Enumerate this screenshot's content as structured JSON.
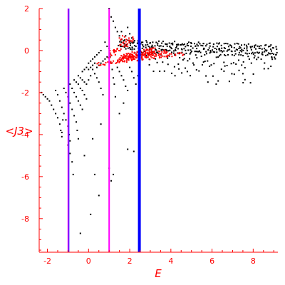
{
  "chart_data": {
    "type": "scatter",
    "title": "",
    "xlabel": "E",
    "ylabel": "<J3>",
    "xlim": [
      -2.4,
      9.2
    ],
    "ylim": [
      -9.6,
      2.0
    ],
    "x_ticks": [
      -2,
      0,
      2,
      4,
      6,
      8
    ],
    "y_ticks": [
      2,
      0,
      -2,
      -4,
      -6,
      -8
    ],
    "grid": false,
    "legend": "none",
    "colors": {
      "axis": "#ff0000",
      "black_points": "#000000",
      "red_points": "#ff0000",
      "magenta_lines": "#ff00ff",
      "blue_line": "#0000ff"
    },
    "vertical_lines": [
      {
        "x": -0.97,
        "color": "#ff00ff",
        "style": "double-magenta-blue"
      },
      {
        "x": 1.0,
        "color": "#ff00ff",
        "style": "magenta"
      },
      {
        "x": 2.47,
        "color": "#0000ff",
        "style": "thick-blue"
      }
    ],
    "series": [
      {
        "color": "#000000",
        "points": [
          [
            -2.3,
            -2.0
          ],
          [
            -2.2,
            -2.1
          ],
          [
            -2.1,
            -2.2
          ],
          [
            -2.0,
            -2.3
          ],
          [
            -1.9,
            -2.4
          ],
          [
            -1.8,
            -2.6
          ],
          [
            -1.7,
            -2.8
          ],
          [
            -1.6,
            -3.0
          ],
          [
            -1.5,
            -3.2
          ],
          [
            -1.4,
            -3.5
          ],
          [
            -1.35,
            -3.8
          ],
          [
            -1.3,
            -4.1
          ],
          [
            -1.6,
            -1.9
          ],
          [
            -1.5,
            -2.1
          ],
          [
            -1.4,
            -2.4
          ],
          [
            -1.3,
            -2.7
          ],
          [
            -1.2,
            -3.0
          ],
          [
            -1.1,
            -3.3
          ],
          [
            -1.0,
            -3.6
          ],
          [
            -0.95,
            -4.0
          ],
          [
            -0.9,
            -4.3
          ],
          [
            -1.2,
            -1.8
          ],
          [
            -1.1,
            -2.0
          ],
          [
            -1.0,
            -2.2
          ],
          [
            -0.9,
            -2.5
          ],
          [
            -0.8,
            -2.8
          ],
          [
            -0.7,
            -3.1
          ],
          [
            -0.6,
            -3.4
          ],
          [
            -0.55,
            -3.8
          ],
          [
            -0.5,
            -4.2
          ],
          [
            -0.9,
            -1.6
          ],
          [
            -0.8,
            -1.8
          ],
          [
            -0.7,
            -2.0
          ],
          [
            -0.6,
            -2.2
          ],
          [
            -0.5,
            -2.4
          ],
          [
            -0.4,
            -2.6
          ],
          [
            -0.3,
            -2.8
          ],
          [
            -0.7,
            -1.4
          ],
          [
            -0.6,
            -1.5
          ],
          [
            -0.5,
            -1.6
          ],
          [
            -0.4,
            -1.8
          ],
          [
            -0.3,
            -1.9
          ],
          [
            -0.2,
            -2.1
          ],
          [
            -0.1,
            -2.3
          ],
          [
            -0.5,
            -1.2
          ],
          [
            -0.4,
            -1.3
          ],
          [
            -0.3,
            -1.4
          ],
          [
            -0.2,
            -1.5
          ],
          [
            -0.1,
            -1.6
          ],
          [
            0.0,
            -1.4
          ],
          [
            0.1,
            -1.2
          ],
          [
            -0.3,
            -1.0
          ],
          [
            -0.2,
            -0.9
          ],
          [
            -0.1,
            -0.8
          ],
          [
            0.0,
            -0.9
          ],
          [
            0.1,
            -0.8
          ],
          [
            0.2,
            -0.7
          ],
          [
            0.3,
            -0.6
          ],
          [
            0.0,
            -0.6
          ],
          [
            0.1,
            -0.5
          ],
          [
            0.2,
            -0.4
          ],
          [
            0.3,
            -0.3
          ],
          [
            0.4,
            -0.2
          ],
          [
            0.5,
            -0.1
          ],
          [
            0.6,
            0.0
          ],
          [
            0.2,
            -0.9
          ],
          [
            0.3,
            -1.1
          ],
          [
            0.4,
            -1.3
          ],
          [
            0.5,
            -1.5
          ],
          [
            0.6,
            -1.8
          ],
          [
            0.7,
            -2.1
          ],
          [
            0.4,
            -0.8
          ],
          [
            0.5,
            -0.7
          ],
          [
            0.6,
            -0.6
          ],
          [
            0.7,
            -0.5
          ],
          [
            0.8,
            -0.4
          ],
          [
            0.9,
            -0.3
          ],
          [
            -1.0,
            -4.5
          ],
          [
            -0.9,
            -4.9
          ],
          [
            -0.8,
            -5.3
          ],
          [
            -0.75,
            -5.9
          ],
          [
            -1.3,
            -3.9
          ],
          [
            -1.25,
            -3.3
          ],
          [
            0.3,
            -5.9
          ],
          [
            0.5,
            -6.9
          ],
          [
            0.1,
            -7.8
          ],
          [
            -0.4,
            -8.7
          ],
          [
            -0.2,
            -5.0
          ],
          [
            0.2,
            -4.2
          ],
          [
            0.6,
            -3.5
          ],
          [
            1.0,
            -5.6
          ],
          [
            1.1,
            -6.2
          ],
          [
            1.2,
            -5.9
          ],
          [
            1.9,
            -4.7
          ],
          [
            2.2,
            -4.8
          ],
          [
            1.5,
            -3.0
          ],
          [
            1.7,
            -2.5
          ],
          [
            1.3,
            -2.2
          ],
          [
            1.0,
            2.0
          ],
          [
            1.1,
            1.6
          ],
          [
            1.2,
            1.4
          ],
          [
            1.3,
            1.1
          ],
          [
            1.4,
            0.9
          ],
          [
            1.5,
            0.7
          ],
          [
            1.6,
            0.4
          ],
          [
            1.7,
            0.2
          ],
          [
            0.8,
            0.4
          ],
          [
            0.9,
            0.2
          ],
          [
            1.0,
            0.1
          ],
          [
            1.05,
            -0.3
          ],
          [
            1.1,
            -0.6
          ],
          [
            1.15,
            -0.9
          ],
          [
            1.2,
            -1.3
          ],
          [
            1.25,
            -1.6
          ],
          [
            1.4,
            -0.8
          ],
          [
            1.5,
            -1.0
          ],
          [
            1.6,
            -1.2
          ],
          [
            1.7,
            -1.4
          ],
          [
            1.8,
            -1.7
          ],
          [
            1.9,
            -1.9
          ],
          [
            2.0,
            0.8
          ],
          [
            2.1,
            0.6
          ],
          [
            2.2,
            0.4
          ],
          [
            2.3,
            0.2
          ],
          [
            1.8,
            0.7
          ],
          [
            1.6,
            0.9
          ],
          [
            1.9,
            1.1
          ],
          [
            2.0,
            -0.8
          ],
          [
            2.1,
            -1.0
          ],
          [
            2.2,
            -1.3
          ],
          [
            2.3,
            -1.6
          ],
          [
            2.4,
            -1.2
          ],
          [
            8.7,
            -0.2
          ],
          [
            8.9,
            -0.3
          ],
          [
            9.1,
            -0.2
          ],
          [
            7.5,
            -1.1
          ],
          [
            5.8,
            -1.5
          ],
          [
            6.2,
            -1.6
          ],
          [
            4.8,
            -1.0
          ],
          [
            4.2,
            -1.2
          ]
        ],
        "bands": [
          {
            "x_start": 1.5,
            "x_end": 9.1,
            "y_start": 0.45,
            "y_end": 0.2,
            "spread": 0.08,
            "count": 80
          },
          {
            "x_start": 1.5,
            "x_end": 9.1,
            "y_start": 0.3,
            "y_end": 0.05,
            "spread": 0.08,
            "count": 80
          },
          {
            "x_start": 1.5,
            "x_end": 9.1,
            "y_start": 0.15,
            "y_end": -0.1,
            "spread": 0.08,
            "count": 80
          },
          {
            "x_start": 2.0,
            "x_end": 9.1,
            "y_start": 0.0,
            "y_end": -0.25,
            "spread": 0.1,
            "count": 60
          },
          {
            "x_start": 2.5,
            "x_end": 9.1,
            "y_start": -0.3,
            "y_end": -0.6,
            "spread": 0.3,
            "count": 55
          },
          {
            "x_start": 3.0,
            "x_end": 8.0,
            "y_start": -0.7,
            "y_end": -1.3,
            "spread": 0.4,
            "count": 30
          }
        ]
      },
      {
        "color": "#ff0000",
        "bands": [
          {
            "x_start": 0.4,
            "x_end": 4.6,
            "y_start": -0.65,
            "y_end": -0.15,
            "spread": 0.08,
            "count": 70
          },
          {
            "x_start": 1.4,
            "x_end": 3.8,
            "y_start": -0.45,
            "y_end": -0.05,
            "spread": 0.1,
            "count": 90
          },
          {
            "x_start": 1.6,
            "x_end": 3.2,
            "y_start": -0.3,
            "y_end": 0.05,
            "spread": 0.12,
            "count": 80
          },
          {
            "x_start": 1.0,
            "x_end": 2.2,
            "y_start": -0.2,
            "y_end": 0.6,
            "spread": 0.15,
            "count": 40
          }
        ],
        "points": [
          [
            1.5,
            0.6
          ],
          [
            1.6,
            0.55
          ],
          [
            1.7,
            0.4
          ],
          [
            1.8,
            0.3
          ],
          [
            1.9,
            0.2
          ],
          [
            1.75,
            0.65
          ],
          [
            1.65,
            0.7
          ],
          [
            1.55,
            0.5
          ],
          [
            1.3,
            -0.2
          ],
          [
            1.2,
            0.0
          ],
          [
            1.4,
            0.1
          ],
          [
            2.3,
            -0.2
          ],
          [
            2.6,
            -0.4
          ]
        ]
      }
    ]
  }
}
